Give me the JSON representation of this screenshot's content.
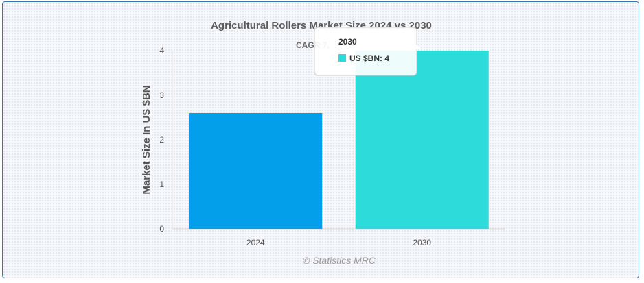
{
  "chart_data": {
    "type": "bar",
    "title": "Agricultural Rollers Market Size 2024 vs 2030",
    "subtitle": "CAGR 7.",
    "ylabel": "Market Size In US $BN",
    "xlabel": "",
    "categories": [
      "2024",
      "2030"
    ],
    "series": [
      {
        "name": "US $BN",
        "values": [
          2.6,
          4
        ]
      }
    ],
    "bar_colors": [
      "#039fea",
      "#2ddbdb"
    ],
    "ylim": [
      0,
      4
    ],
    "yticks": [
      "0",
      "1",
      "2",
      "3",
      "4"
    ],
    "grid": false,
    "credit": "© Statistics MRC",
    "tooltip": {
      "title": "2030",
      "label": "US $BN: 4",
      "swatch_color": "#2ddbdb"
    }
  }
}
